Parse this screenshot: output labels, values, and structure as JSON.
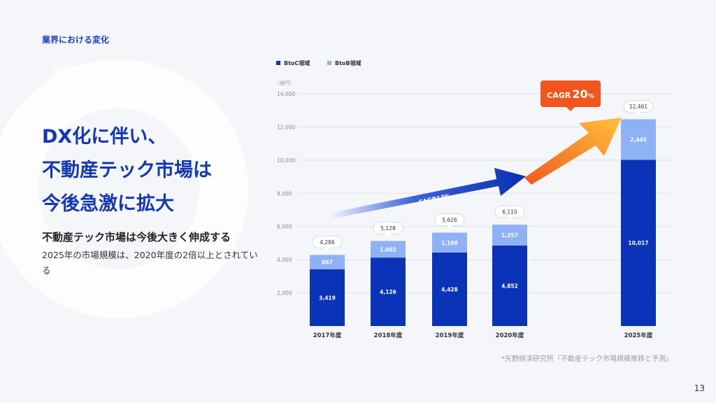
{
  "section_label": "業界における変化",
  "headline": [
    "DX化に伴い、",
    "不動産テック市場は",
    "今後急激に拡大"
  ],
  "sub_heading": "不動産テック市場は今後大きく伸成する",
  "body_text": "2025年の市場規模は、2020年度の2倍以上とされている",
  "footnote": "*矢野経済研究所『不動産テック市場規模推移と予測』",
  "page_number": "13",
  "colors": {
    "btoc": "#0b33b7",
    "btob": "#8fb1f5",
    "accent": "#f25a1f",
    "heading": "#1238b5"
  },
  "chart_data": {
    "type": "bar",
    "stacked": true,
    "unit_label": "（億円）",
    "categories": [
      "2017年度",
      "2018年度",
      "2019年度",
      "2020年度",
      "2025年度"
    ],
    "series": [
      {
        "name": "BtoC領域",
        "values": [
          3419,
          4126,
          4428,
          4852,
          10017
        ]
      },
      {
        "name": "BtoB領域",
        "values": [
          867,
          1002,
          1198,
          1257,
          2445
        ]
      }
    ],
    "value_labels": {
      "btoc": [
        "3,419",
        "4,126",
        "4,428",
        "4,852",
        "10,017"
      ],
      "btob": [
        "867",
        "1,002",
        "1,198",
        "1,257",
        "2,445"
      ],
      "totals": [
        "4,286",
        "5,128",
        "5,626",
        "6,110",
        "12,461"
      ]
    },
    "yticks": [
      2000,
      4000,
      6000,
      8000,
      10000,
      12000,
      14000
    ],
    "ytick_labels": [
      "2,000",
      "4,000",
      "6,000",
      "8,000",
      "10,000",
      "12,000",
      "14,000"
    ],
    "ylim": [
      0,
      14000
    ],
    "grid": true,
    "legend_position": "top-left",
    "annotations": {
      "cagr_blue": "CAGR13%",
      "cagr_orange_prefix": "CAGR",
      "cagr_orange_value": "20",
      "cagr_orange_suffix": "%"
    }
  }
}
